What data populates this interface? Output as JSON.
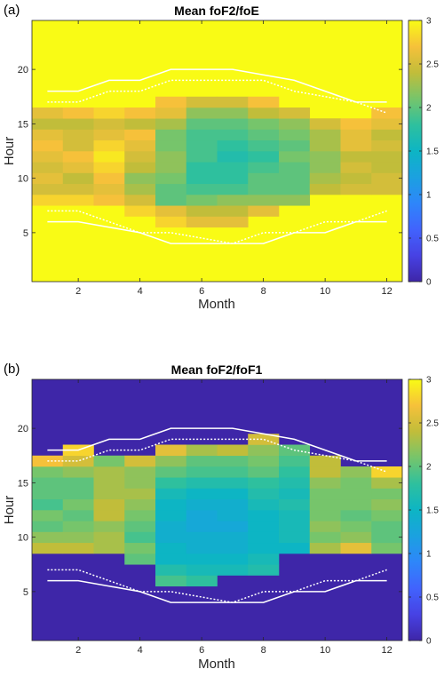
{
  "chart_data": [
    {
      "panel_label": "(a)",
      "type": "heatmap",
      "title": "Mean foF2/foE",
      "xlabel": "Month",
      "ylabel": "Hour",
      "xlim": [
        0.5,
        12.5
      ],
      "ylim": [
        0.5,
        24.5
      ],
      "xticks": [
        "2",
        "4",
        "6",
        "8",
        "10",
        "12"
      ],
      "yticks": [
        "5",
        "10",
        "15",
        "20"
      ],
      "colorbar": {
        "min": 0,
        "max": 3,
        "ticks": [
          "0",
          "0.5",
          "1",
          "1.5",
          "2",
          "2.5",
          "3"
        ]
      },
      "fill_value": 3,
      "columns": [
        {
          "month": 1,
          "h0": 8,
          "values": [
            2.8,
            2.5,
            2.6,
            2.5,
            2.6,
            2.7,
            2.6,
            2.4,
            2.6
          ]
        },
        {
          "month": 2,
          "h0": 8,
          "values": [
            2.8,
            2.5,
            2.4,
            2.6,
            2.7,
            2.5,
            2.5,
            2.4,
            2.7
          ]
        },
        {
          "month": 3,
          "h0": 8,
          "values": [
            2.7,
            2.6,
            2.7,
            2.8,
            2.9,
            2.8,
            2.6,
            2.5,
            2.8
          ]
        },
        {
          "month": 4,
          "h0": 7,
          "values": [
            2.8,
            2.5,
            2.3,
            2.2,
            2.4,
            2.5,
            2.6,
            2.7,
            2.4,
            2.7
          ]
        },
        {
          "month": 5,
          "h0": 6,
          "values": [
            2.8,
            2.6,
            2.0,
            2.0,
            2.1,
            2.2,
            2.2,
            2.1,
            2.1,
            2.3,
            2.6,
            2.7
          ]
        },
        {
          "month": 6,
          "h0": 6,
          "values": [
            2.6,
            2.4,
            2.1,
            1.9,
            1.8,
            1.8,
            1.9,
            1.9,
            1.9,
            2.0,
            2.2,
            2.5
          ]
        },
        {
          "month": 7,
          "h0": 6,
          "values": [
            2.6,
            2.4,
            2.2,
            1.9,
            1.8,
            1.8,
            1.7,
            1.8,
            1.9,
            2.0,
            2.2,
            2.5
          ]
        },
        {
          "month": 8,
          "h0": 7,
          "values": [
            2.6,
            2.2,
            2.0,
            2.0,
            1.9,
            1.8,
            1.9,
            2.0,
            2.1,
            2.4,
            2.7
          ]
        },
        {
          "month": 9,
          "h0": 8,
          "values": [
            2.2,
            2.0,
            2.0,
            2.0,
            2.1,
            2.0,
            2.1,
            2.2,
            2.5
          ]
        },
        {
          "month": 10,
          "h0": 9,
          "values": [
            2.4,
            2.3,
            2.2,
            2.2,
            2.3,
            2.3,
            2.5
          ]
        },
        {
          "month": 11,
          "h0": 9,
          "values": [
            2.5,
            2.4,
            2.5,
            2.4,
            2.6,
            2.6,
            2.7
          ]
        },
        {
          "month": 12,
          "h0": 9,
          "values": [
            2.5,
            2.5,
            2.4,
            2.4,
            2.5,
            2.4,
            2.6,
            2.7
          ]
        }
      ]
    },
    {
      "panel_label": "(b)",
      "type": "heatmap",
      "title": "Mean foF2/foF1",
      "xlabel": "Month",
      "ylabel": "Hour",
      "xlim": [
        0.5,
        12.5
      ],
      "ylim": [
        0.5,
        24.5
      ],
      "xticks": [
        "2",
        "4",
        "6",
        "8",
        "10",
        "12"
      ],
      "yticks": [
        "5",
        "10",
        "15",
        "20"
      ],
      "colorbar": {
        "min": 0,
        "max": 3,
        "ticks": [
          "0",
          "0.5",
          "1",
          "1.5",
          "2",
          "2.5",
          "3"
        ]
      },
      "fill_value": 0,
      "columns": [
        {
          "month": 1,
          "h0": 9,
          "values": [
            2.4,
            2.2,
            2.0,
            2.1,
            1.9,
            2.0,
            2.0,
            2.1,
            2.7
          ]
        },
        {
          "month": 2,
          "h0": 9,
          "values": [
            2.4,
            2.2,
            2.1,
            2.0,
            2.1,
            2.0,
            2.0,
            2.2,
            2.5,
            2.8
          ]
        },
        {
          "month": 3,
          "h0": 9,
          "values": [
            2.3,
            2.3,
            2.2,
            2.4,
            2.4,
            2.3,
            2.3,
            2.3,
            2.1
          ]
        },
        {
          "month": 4,
          "h0": 8,
          "values": [
            2.0,
            2.1,
            1.9,
            2.0,
            2.1,
            2.2,
            2.3,
            2.2,
            2.2,
            2.5
          ]
        },
        {
          "month": 5,
          "h0": 6,
          "values": [
            1.9,
            1.7,
            1.5,
            1.5,
            1.4,
            1.4,
            1.5,
            1.5,
            1.6,
            1.8,
            2.0,
            2.2,
            2.6
          ]
        },
        {
          "month": 6,
          "h0": 6,
          "values": [
            1.8,
            1.6,
            1.5,
            1.4,
            1.4,
            1.3,
            1.3,
            1.4,
            1.5,
            1.7,
            1.9,
            2.0,
            2.3
          ]
        },
        {
          "month": 7,
          "h0": 7,
          "values": [
            1.6,
            1.5,
            1.4,
            1.4,
            1.3,
            1.4,
            1.4,
            1.5,
            1.7,
            1.9,
            2.0,
            2.4
          ]
        },
        {
          "month": 8,
          "h0": 7,
          "values": [
            1.7,
            1.6,
            1.5,
            1.5,
            1.5,
            1.5,
            1.6,
            1.7,
            1.8,
            2.0,
            2.1,
            2.2,
            2.5
          ]
        },
        {
          "month": 9,
          "h0": 9,
          "values": [
            1.5,
            1.6,
            1.6,
            1.6,
            1.7,
            1.6,
            1.7,
            1.8,
            1.9,
            2.0
          ]
        },
        {
          "month": 10,
          "h0": 9,
          "values": [
            2.3,
            2.1,
            2.2,
            2.1,
            2.1,
            2.1,
            2.2,
            2.4,
            2.4
          ]
        },
        {
          "month": 11,
          "h0": 9,
          "values": [
            2.6,
            2.2,
            2.1,
            2.0,
            2.1,
            2.1,
            2.1,
            2.2
          ]
        },
        {
          "month": 12,
          "h0": 9,
          "values": [
            2.1,
            2.0,
            2.0,
            2.1,
            2.2,
            2.1,
            2.3,
            2.8
          ]
        }
      ]
    }
  ],
  "overlay_lines": {
    "months": [
      1,
      2,
      3,
      4,
      5,
      6,
      7,
      8,
      9,
      10,
      11,
      12
    ],
    "sunset_solid": [
      18,
      18,
      19,
      19,
      20,
      20,
      20,
      19.5,
      19,
      18,
      17,
      17
    ],
    "sunset_dotted": [
      17,
      17,
      18,
      18,
      19,
      19,
      19,
      19,
      18,
      17.5,
      17,
      16
    ],
    "sunrise_dotted": [
      7,
      7,
      6,
      5,
      5,
      4.5,
      4,
      5,
      5,
      6,
      6,
      7
    ],
    "sunrise_solid": [
      6,
      6,
      5.5,
      5,
      4,
      4,
      4,
      4,
      5,
      5,
      6,
      6
    ]
  }
}
